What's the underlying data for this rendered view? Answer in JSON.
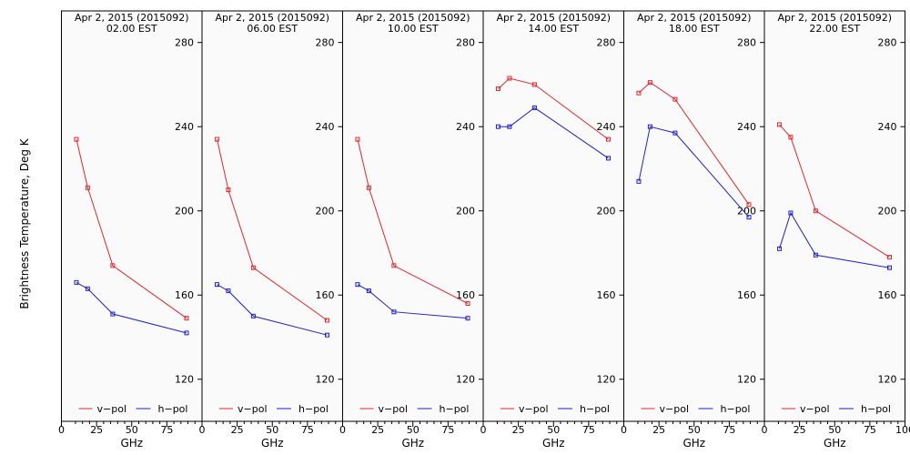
{
  "ylabel": "Brightness Temperature, Deg K",
  "xlabel": "GHz",
  "colors": {
    "v_pol": "#e8262b",
    "h_pol": "#1f1fd6",
    "panel_bg": "#fafafa",
    "axis": "#000000"
  },
  "legend": {
    "v_label": "v−pol",
    "h_label": "h−pol",
    "placement": "bottom"
  },
  "xticks": [
    "0",
    "25",
    "50",
    "75",
    "100"
  ],
  "yticks": [
    "120",
    "160",
    "200",
    "240",
    "280"
  ],
  "chart_data": [
    {
      "type": "line",
      "title": "Apr  2, 2015 (2015092)",
      "subtitle": "02.00 EST",
      "x": [
        10.65,
        18.7,
        36.5,
        89.0
      ],
      "xlim": [
        0,
        100
      ],
      "ylim": [
        100,
        295
      ],
      "series": [
        {
          "name": "v−pol",
          "values": [
            234,
            211,
            174,
            149
          ]
        },
        {
          "name": "h−pol",
          "values": [
            166,
            163,
            151,
            142
          ]
        }
      ]
    },
    {
      "type": "line",
      "title": "Apr  2, 2015 (2015092)",
      "subtitle": "06.00 EST",
      "x": [
        10.65,
        18.7,
        36.5,
        89.0
      ],
      "xlim": [
        0,
        100
      ],
      "ylim": [
        100,
        295
      ],
      "series": [
        {
          "name": "v−pol",
          "values": [
            234,
            210,
            173,
            148
          ]
        },
        {
          "name": "h−pol",
          "values": [
            165,
            162,
            150,
            141
          ]
        }
      ]
    },
    {
      "type": "line",
      "title": "Apr  2, 2015 (2015092)",
      "subtitle": "10.00 EST",
      "x": [
        10.65,
        18.7,
        36.5,
        89.0
      ],
      "xlim": [
        0,
        100
      ],
      "ylim": [
        100,
        295
      ],
      "series": [
        {
          "name": "v−pol",
          "values": [
            234,
            211,
            174,
            156
          ]
        },
        {
          "name": "h−pol",
          "values": [
            165,
            162,
            152,
            149
          ]
        }
      ]
    },
    {
      "type": "line",
      "title": "Apr  2, 2015 (2015092)",
      "subtitle": "14.00 EST",
      "x": [
        10.65,
        18.7,
        36.5,
        89.0
      ],
      "xlim": [
        0,
        100
      ],
      "ylim": [
        100,
        295
      ],
      "series": [
        {
          "name": "v−pol",
          "values": [
            258,
            263,
            260,
            234
          ]
        },
        {
          "name": "h−pol",
          "values": [
            240,
            240,
            249,
            225
          ]
        }
      ]
    },
    {
      "type": "line",
      "title": "Apr  2, 2015 (2015092)",
      "subtitle": "18.00 EST",
      "x": [
        10.65,
        18.7,
        36.5,
        89.0
      ],
      "xlim": [
        0,
        100
      ],
      "ylim": [
        100,
        295
      ],
      "series": [
        {
          "name": "v−pol",
          "values": [
            256,
            261,
            253,
            203
          ]
        },
        {
          "name": "h−pol",
          "values": [
            214,
            240,
            237,
            197
          ]
        }
      ]
    },
    {
      "type": "line",
      "title": "Apr  2, 2015 (2015092)",
      "subtitle": "22.00 EST",
      "x": [
        10.65,
        18.7,
        36.5,
        89.0
      ],
      "xlim": [
        0,
        100
      ],
      "ylim": [
        100,
        295
      ],
      "series": [
        {
          "name": "v−pol",
          "values": [
            241,
            235,
            200,
            178
          ]
        },
        {
          "name": "h−pol",
          "values": [
            182,
            199,
            179,
            173
          ]
        }
      ]
    }
  ]
}
